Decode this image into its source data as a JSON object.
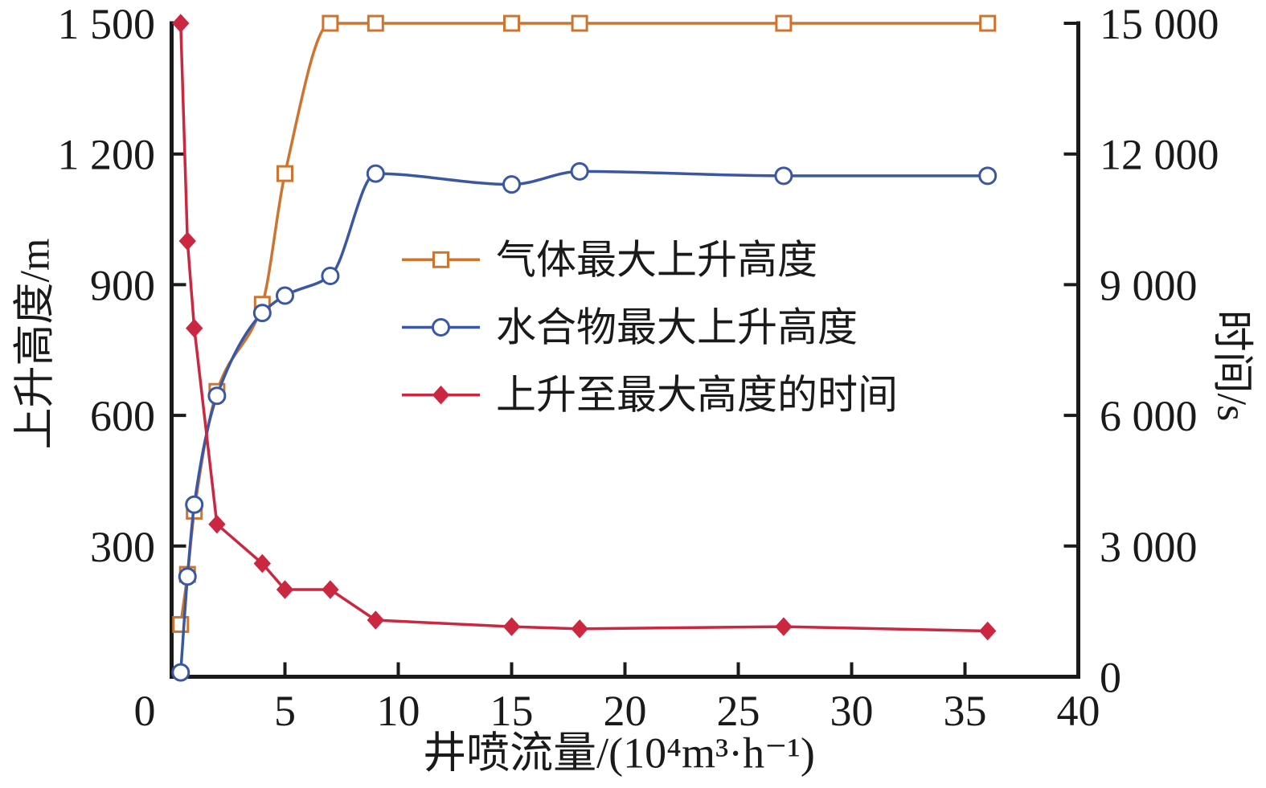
{
  "chart_data": {
    "type": "line",
    "title": "",
    "xlabel": "井喷流量/(10⁴m³·h⁻¹)",
    "ylabel_left": "上升高度/m",
    "ylabel_right": "时间/s",
    "xlim": [
      0,
      40
    ],
    "ylim_left": [
      0,
      1500
    ],
    "ylim_right": [
      0,
      15000
    ],
    "grid": false,
    "legend_position": "inside-upper-middle",
    "x": [
      0.4,
      0.7,
      1,
      2,
      4,
      5,
      7,
      9,
      15,
      18,
      27,
      36
    ],
    "series": [
      {
        "name": "气体最大上升高度",
        "slug": "gas-max-rise-height",
        "axis": "left",
        "unit": "m",
        "color": "#ce742f",
        "marker": "open-square",
        "line": "smooth",
        "values": [
          120,
          235,
          380,
          655,
          855,
          1155,
          1500,
          1500,
          1500,
          1500,
          1500,
          1500
        ]
      },
      {
        "name": "水合物最大上升高度",
        "slug": "hydrate-max-rise-height",
        "axis": "left",
        "unit": "m",
        "color": "#3a57a3",
        "marker": "open-circle",
        "line": "smooth",
        "values": [
          10,
          230,
          395,
          645,
          835,
          875,
          920,
          1155,
          1130,
          1160,
          1150,
          1150
        ]
      },
      {
        "name": "上升至最大高度的时间",
        "slug": "time-to-max-height",
        "axis": "right",
        "unit": "s",
        "color": "#cc2741",
        "marker": "filled-diamond",
        "line": "straight",
        "values": [
          15000,
          10000,
          8000,
          3500,
          2600,
          2000,
          2000,
          1300,
          1150,
          1100,
          1150,
          1050
        ]
      }
    ],
    "xticks": {
      "values": [
        0,
        5,
        10,
        15,
        20,
        25,
        30,
        35,
        40
      ],
      "labels": [
        "0",
        "5",
        "10",
        "15",
        "20",
        "25",
        "30",
        "35",
        "40"
      ]
    },
    "yticks_left": {
      "values": [
        300,
        600,
        900,
        1200,
        1500
      ],
      "labels": [
        "300",
        "600",
        "900",
        "1 200",
        "1 500"
      ]
    },
    "yticks_right": {
      "values": [
        0,
        3000,
        6000,
        9000,
        12000,
        15000
      ],
      "labels": [
        "0",
        "3 000",
        "6 000",
        "9 000",
        "12 000",
        "15 000"
      ]
    }
  },
  "colors": {
    "axis": "#1a1a1a",
    "background": "#ffffff"
  }
}
